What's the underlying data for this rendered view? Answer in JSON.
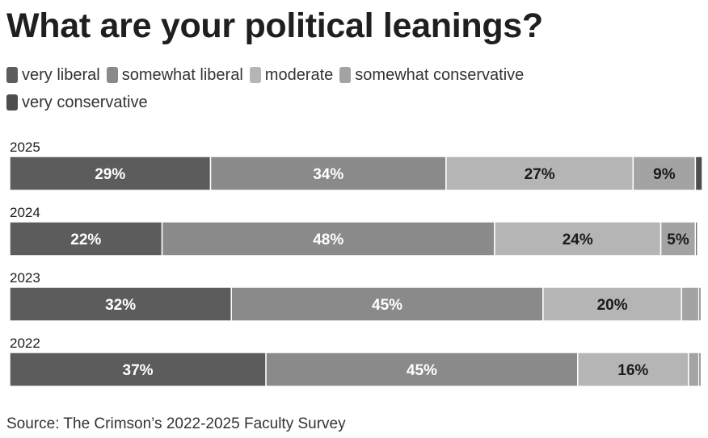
{
  "chart_data": {
    "type": "bar",
    "orientation": "horizontal",
    "stacked": true,
    "title": "What are your political leanings?",
    "source": "Source: The Crimson’s 2022-2025 Faculty Survey",
    "categories": [
      "2025",
      "2024",
      "2023",
      "2022"
    ],
    "series": [
      {
        "name": "very liberal",
        "color": "#5c5c5c",
        "label_color": "#ffffff",
        "values": [
          29,
          22,
          32,
          37
        ],
        "labels": [
          "29%",
          "22%",
          "32%",
          "37%"
        ]
      },
      {
        "name": "somewhat liberal",
        "color": "#8a8a8a",
        "label_color": "#ffffff",
        "values": [
          34,
          48,
          45,
          45
        ],
        "labels": [
          "34%",
          "48%",
          "45%",
          "45%"
        ]
      },
      {
        "name": "moderate",
        "color": "#b5b5b5",
        "label_color": "#1a1a1a",
        "values": [
          27,
          24,
          20,
          16
        ],
        "labels": [
          "27%",
          "24%",
          "20%",
          "16%"
        ]
      },
      {
        "name": "somewhat conservative",
        "color": "#a3a3a3",
        "label_color": "#1a1a1a",
        "values": [
          9,
          5,
          2.5,
          1.5
        ],
        "labels": [
          "9%",
          "5%",
          "",
          ""
        ]
      },
      {
        "name": "very conservative",
        "color": "#4d4d4d",
        "label_color": "#ffffff",
        "values": [
          1,
          0.3,
          0.3,
          0.3
        ],
        "labels": [
          "",
          "",
          "",
          ""
        ]
      }
    ],
    "xlim": [
      0,
      100
    ],
    "legend": "top"
  }
}
